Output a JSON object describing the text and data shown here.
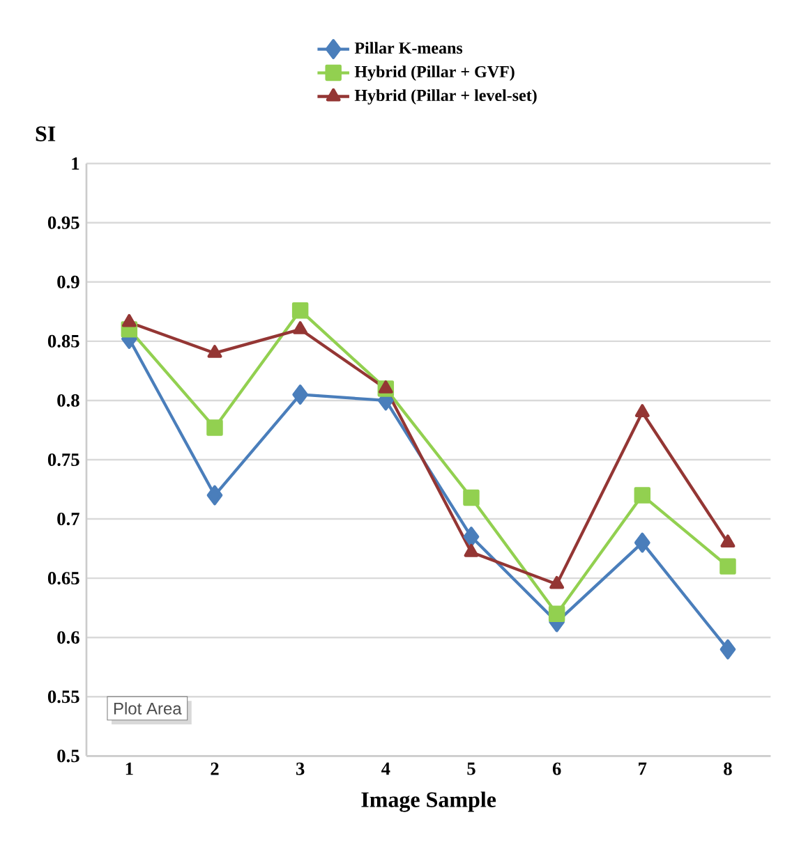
{
  "chart_data": {
    "type": "line",
    "ylabel": "SI",
    "xlabel": "Image Sample",
    "categories": [
      "1",
      "2",
      "3",
      "4",
      "5",
      "6",
      "7",
      "8"
    ],
    "series": [
      {
        "name": "Pillar K-means",
        "color": "#4a7ebb",
        "marker": "diamond",
        "values": [
          0.852,
          0.72,
          0.805,
          0.8,
          0.685,
          0.613,
          0.68,
          0.59
        ]
      },
      {
        "name": "Hybrid (Pillar + GVF)",
        "color": "#92d050",
        "marker": "square",
        "values": [
          0.86,
          0.777,
          0.876,
          0.81,
          0.718,
          0.62,
          0.72,
          0.66
        ]
      },
      {
        "name": "Hybrid (Pillar + level-set)",
        "color": "#943634",
        "marker": "triangle",
        "values": [
          0.866,
          0.84,
          0.86,
          0.81,
          0.672,
          0.645,
          0.79,
          0.68
        ]
      }
    ],
    "ylim": [
      0.5,
      1
    ],
    "yticks": [
      0.5,
      0.55,
      0.6,
      0.65,
      0.7,
      0.75,
      0.8,
      0.85,
      0.9,
      0.95,
      1
    ],
    "grid": "y",
    "legend": "top",
    "line_style": "solid",
    "annotations": [
      "Plot Area"
    ]
  }
}
